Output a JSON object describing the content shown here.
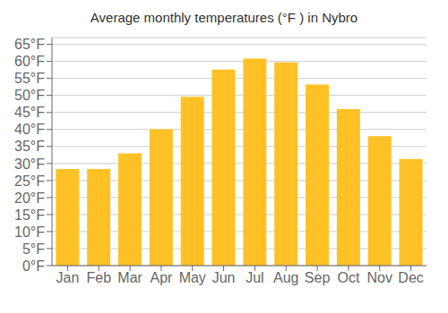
{
  "chart_data": {
    "type": "bar",
    "title": "Average monthly temperatures (°F ) in Nybro",
    "categories": [
      "Jan",
      "Feb",
      "Mar",
      "Apr",
      "May",
      "Jun",
      "Jul",
      "Aug",
      "Sep",
      "Oct",
      "Nov",
      "Dec"
    ],
    "values": [
      28.4,
      28.4,
      33.0,
      40.1,
      49.6,
      57.6,
      60.8,
      59.7,
      53.2,
      46.0,
      38.0,
      31.3
    ],
    "color": "#FFC125",
    "ylim": [
      0,
      67
    ],
    "yticks": [
      {
        "value": 0,
        "label": "0°F"
      },
      {
        "value": 5,
        "label": "5°F"
      },
      {
        "value": 10,
        "label": "10°F"
      },
      {
        "value": 15,
        "label": "15°F"
      },
      {
        "value": 20,
        "label": "20°F"
      },
      {
        "value": 25,
        "label": "25°F"
      },
      {
        "value": 30,
        "label": "30°F"
      },
      {
        "value": 35,
        "label": "35°F"
      },
      {
        "value": 40,
        "label": "40°F"
      },
      {
        "value": 45,
        "label": "45°F"
      },
      {
        "value": 50,
        "label": "50°F"
      },
      {
        "value": 55,
        "label": "55°F"
      },
      {
        "value": 60,
        "label": "60°F"
      },
      {
        "value": 65,
        "label": "65°F"
      }
    ],
    "grid": true
  }
}
